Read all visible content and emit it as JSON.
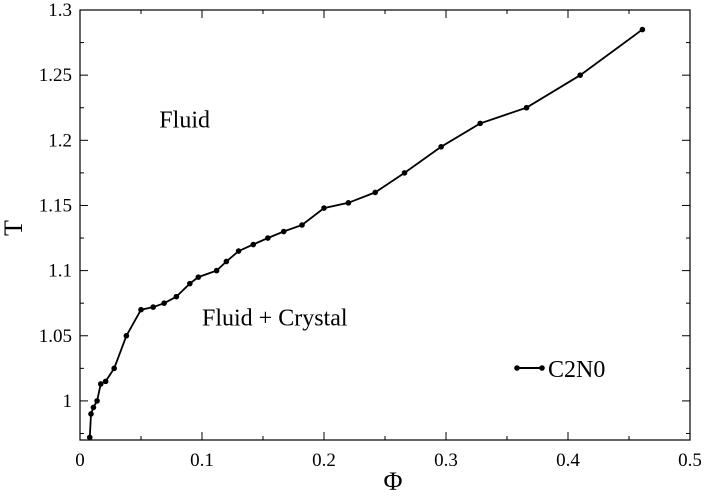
{
  "chart_data": {
    "type": "line",
    "xlabel": "Φ",
    "ylabel": "T",
    "xlim": [
      0,
      0.5
    ],
    "ylim": [
      0.97,
      1.3
    ],
    "xticks": [
      0,
      0.1,
      0.2,
      0.3,
      0.4,
      0.5
    ],
    "xtick_labels": [
      "0",
      "0.1",
      "0.2",
      "0.3",
      "0.4",
      "0.5"
    ],
    "yticks": [
      1,
      1.05,
      1.1,
      1.15,
      1.2,
      1.25,
      1.3
    ],
    "ytick_labels": [
      "1",
      "1.05",
      "1.1",
      "1.15",
      "1.2",
      "1.25",
      "1.3"
    ],
    "grid": false,
    "legend_position": "bottom-right",
    "annotations": [
      {
        "text": "Fluid",
        "x": 0.065,
        "y": 1.21
      },
      {
        "text": "Fluid + Crystal",
        "x": 0.1,
        "y": 1.058
      }
    ],
    "series": [
      {
        "name": "C2N0",
        "color": "#000000",
        "marker": "circle",
        "x": [
          0.008,
          0.009,
          0.011,
          0.014,
          0.017,
          0.021,
          0.028,
          0.038,
          0.05,
          0.06,
          0.069,
          0.079,
          0.09,
          0.097,
          0.112,
          0.12,
          0.13,
          0.142,
          0.154,
          0.167,
          0.182,
          0.2,
          0.22,
          0.242,
          0.266,
          0.296,
          0.328,
          0.366,
          0.41,
          0.461
        ],
        "y": [
          0.972,
          0.99,
          0.995,
          1.0,
          1.013,
          1.015,
          1.025,
          1.05,
          1.07,
          1.072,
          1.075,
          1.08,
          1.09,
          1.095,
          1.1,
          1.107,
          1.115,
          1.12,
          1.125,
          1.13,
          1.135,
          1.148,
          1.152,
          1.16,
          1.175,
          1.195,
          1.213,
          1.225,
          1.25,
          1.285
        ]
      }
    ]
  }
}
